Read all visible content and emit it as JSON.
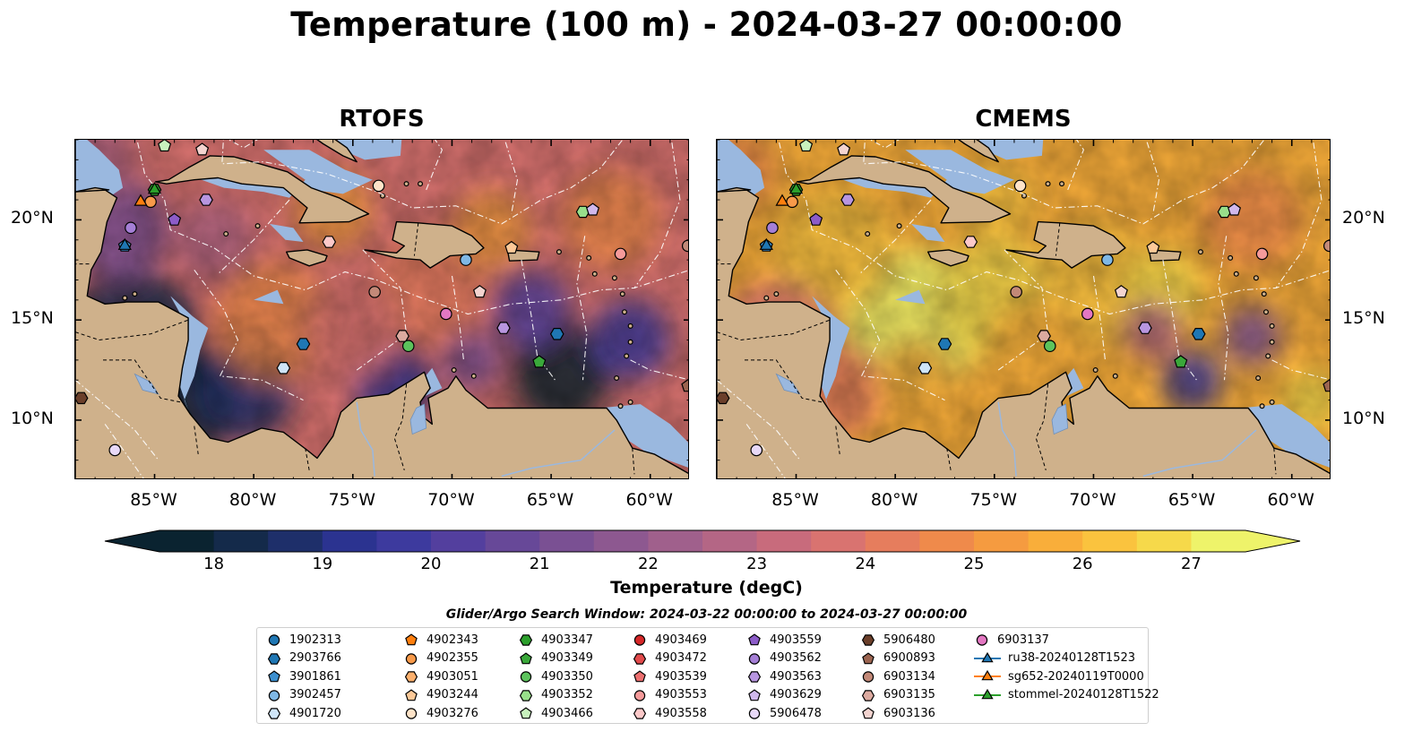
{
  "title": "Temperature (100 m) - 2024-03-27 00:00:00",
  "panels": [
    {
      "title": "RTOFS",
      "scheme": "rtofs"
    },
    {
      "title": "CMEMS",
      "scheme": "cmems"
    }
  ],
  "lat_ticks": [
    {
      "label": "20°N",
      "value": 20
    },
    {
      "label": "15°N",
      "value": 15
    },
    {
      "label": "10°N",
      "value": 10
    }
  ],
  "lon_ticks": [
    {
      "label": "85°W",
      "value": -85
    },
    {
      "label": "80°W",
      "value": -80
    },
    {
      "label": "75°W",
      "value": -75
    },
    {
      "label": "70°W",
      "value": -70
    },
    {
      "label": "65°W",
      "value": -65
    },
    {
      "label": "60°W",
      "value": -60
    }
  ],
  "map_extent": {
    "lon_min": -89,
    "lon_max": -58,
    "lat_min": 7,
    "lat_max": 24
  },
  "colorbar": {
    "label": "Temperature (degC)",
    "min": 17.5,
    "max": 27.5,
    "ticks": [
      18,
      19,
      20,
      21,
      22,
      23,
      24,
      25,
      26,
      27
    ],
    "colors": [
      "#0a2330",
      "#142a4a",
      "#1e2f6a",
      "#2b3390",
      "#3d3a9e",
      "#533f9e",
      "#674898",
      "#7a5093",
      "#8d5890",
      "#a0608c",
      "#b46685",
      "#c86b7c",
      "#d97370",
      "#e67d5d",
      "#ef8a4b",
      "#f59b40",
      "#f9ae3a",
      "#fac33e",
      "#f6d94a",
      "#eef36a"
    ],
    "extend": "both"
  },
  "search_window": "Glider/Argo Search Window: 2024-03-22 00:00:00 to 2024-03-27 00:00:00",
  "legend": [
    {
      "label": "1902313",
      "marker": "circle",
      "color": "#1f77b4"
    },
    {
      "label": "2903766",
      "marker": "hexagon",
      "color": "#1f77b4"
    },
    {
      "label": "3901861",
      "marker": "pentagon",
      "color": "#3c8fcf"
    },
    {
      "label": "3902457",
      "marker": "circle",
      "color": "#7fb8e6"
    },
    {
      "label": "4901720",
      "marker": "hexagon",
      "color": "#cfe5f8"
    },
    {
      "label": "4902343",
      "marker": "pentagon",
      "color": "#ff7f0e"
    },
    {
      "label": "4902355",
      "marker": "circle",
      "color": "#f89a4a"
    },
    {
      "label": "4903051",
      "marker": "hexagon",
      "color": "#fcb06d"
    },
    {
      "label": "4903244",
      "marker": "pentagon",
      "color": "#fdc998"
    },
    {
      "label": "4903276",
      "marker": "circle",
      "color": "#fee3c8"
    },
    {
      "label": "4903347",
      "marker": "hexagon",
      "color": "#2ca02c"
    },
    {
      "label": "4903349",
      "marker": "pentagon",
      "color": "#3aa83a"
    },
    {
      "label": "4903350",
      "marker": "circle",
      "color": "#5cc35c"
    },
    {
      "label": "4903352",
      "marker": "hexagon",
      "color": "#98df8a"
    },
    {
      "label": "4903466",
      "marker": "pentagon",
      "color": "#c8f2bd"
    },
    {
      "label": "4903469",
      "marker": "circle",
      "color": "#d62728"
    },
    {
      "label": "4903472",
      "marker": "hexagon",
      "color": "#e24a4b"
    },
    {
      "label": "4903539",
      "marker": "pentagon",
      "color": "#ec6f6f"
    },
    {
      "label": "4903553",
      "marker": "circle",
      "color": "#f59a9a"
    },
    {
      "label": "4903558",
      "marker": "hexagon",
      "color": "#fcc9c9"
    },
    {
      "label": "4903559",
      "marker": "pentagon",
      "color": "#8c5cc8"
    },
    {
      "label": "4903562",
      "marker": "circle",
      "color": "#a57fd6"
    },
    {
      "label": "4903563",
      "marker": "hexagon",
      "color": "#b896e0"
    },
    {
      "label": "4903629",
      "marker": "pentagon",
      "color": "#d0b8ec"
    },
    {
      "label": "5906478",
      "marker": "circle",
      "color": "#e8d9f8"
    },
    {
      "label": "5906480",
      "marker": "hexagon",
      "color": "#6b3f2a"
    },
    {
      "label": "6900893",
      "marker": "pentagon",
      "color": "#9b6450"
    },
    {
      "label": "6903134",
      "marker": "circle",
      "color": "#c38978"
    },
    {
      "label": "6903135",
      "marker": "hexagon",
      "color": "#dcaaa0"
    },
    {
      "label": "6903136",
      "marker": "pentagon",
      "color": "#f4d4d0"
    },
    {
      "label": "6903137",
      "marker": "circle",
      "color": "#e377c2"
    },
    {
      "label": "ru38-20240128T1523",
      "marker": "triangle-line",
      "color": "#1f77b4"
    },
    {
      "label": "sg652-20240119T0000",
      "marker": "triangle-line",
      "color": "#ff7f0e"
    },
    {
      "label": "stommel-20240128T1522",
      "marker": "triangle-line",
      "color": "#2ca02c"
    }
  ],
  "platform_positions": [
    {
      "id": "3901861",
      "lon": -86.5,
      "lat": 18.7
    },
    {
      "id": "4902355",
      "lon": -85.2,
      "lat": 20.9
    },
    {
      "id": "4903347",
      "lon": -85.0,
      "lat": 21.5
    },
    {
      "id": "4903562",
      "lon": -86.2,
      "lat": 19.6
    },
    {
      "id": "4903559",
      "lon": -84.0,
      "lat": 20.0
    },
    {
      "id": "4903563",
      "lon": -82.4,
      "lat": 21.0
    },
    {
      "id": "4903466",
      "lon": -84.5,
      "lat": 23.7
    },
    {
      "id": "6903136",
      "lon": -82.6,
      "lat": 23.5
    },
    {
      "id": "4903276",
      "lon": -73.7,
      "lat": 21.7
    },
    {
      "id": "4903352",
      "lon": -63.4,
      "lat": 20.4
    },
    {
      "id": "4903629",
      "lon": -62.9,
      "lat": 20.5
    },
    {
      "id": "4903558",
      "lon": -76.2,
      "lat": 18.9
    },
    {
      "id": "4903244",
      "lon": -67.0,
      "lat": 18.6
    },
    {
      "id": "4903553",
      "lon": -61.5,
      "lat": 18.3
    },
    {
      "id": "3902457",
      "lon": -69.3,
      "lat": 18.0
    },
    {
      "id": "6903134",
      "lon": -73.9,
      "lat": 16.4
    },
    {
      "id": "6903136",
      "lon": -68.6,
      "lat": 16.4
    },
    {
      "id": "6903137",
      "lon": -70.3,
      "lat": 15.3
    },
    {
      "id": "4903563",
      "lon": -67.4,
      "lat": 14.6
    },
    {
      "id": "2903766",
      "lon": -64.7,
      "lat": 14.3
    },
    {
      "id": "6903135",
      "lon": -72.5,
      "lat": 14.2
    },
    {
      "id": "4903350",
      "lon": -72.2,
      "lat": 13.7
    },
    {
      "id": "2903766",
      "lon": -77.5,
      "lat": 13.8
    },
    {
      "id": "4903349",
      "lon": -65.6,
      "lat": 12.9
    },
    {
      "id": "4901720",
      "lon": -78.5,
      "lat": 12.6
    },
    {
      "id": "5906480",
      "lon": -88.7,
      "lat": 11.1
    },
    {
      "id": "5906478",
      "lon": -87.0,
      "lat": 8.5
    },
    {
      "id": "6900893",
      "lon": -58.1,
      "lat": 11.7
    },
    {
      "id": "6903134",
      "lon": -58.1,
      "lat": 18.7
    }
  ],
  "glider_positions": [
    {
      "id": "ru38-20240128T1523",
      "lon": -86.5,
      "lat": 18.7
    },
    {
      "id": "sg652-20240119T0000",
      "lon": -85.7,
      "lat": 20.9
    },
    {
      "id": "stommel-20240128T1522",
      "lon": -85.0,
      "lat": 21.5
    }
  ]
}
